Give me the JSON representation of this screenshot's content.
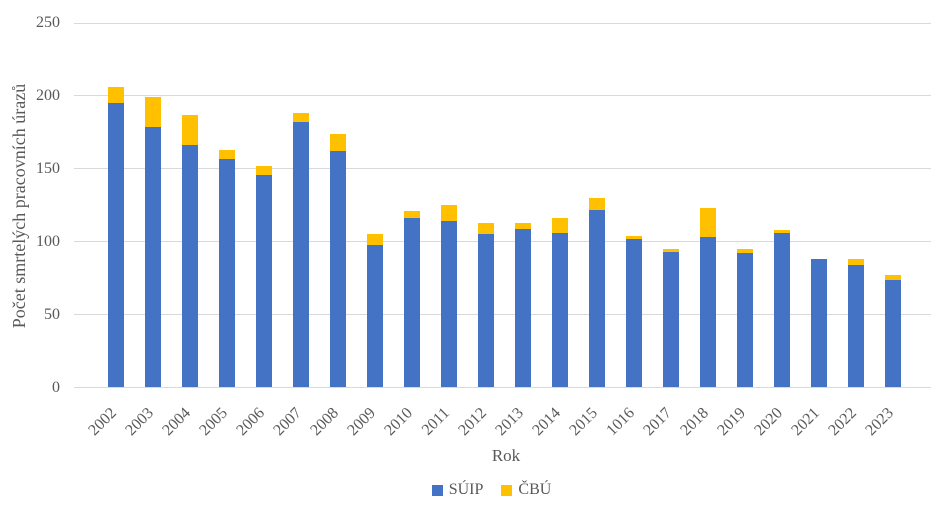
{
  "chart_data": {
    "type": "bar",
    "stacked": true,
    "title": "",
    "xlabel": "Rok",
    "ylabel": "Počet smrtelých pracovních úrazů",
    "categories": [
      "2002",
      "2003",
      "2004",
      "2005",
      "2006",
      "2007",
      "2008",
      "2009",
      "2010",
      "2011",
      "2012",
      "2013",
      "2014",
      "2015",
      "1016",
      "2017",
      "2018",
      "2019",
      "2020",
      "2021",
      "2022",
      "2023"
    ],
    "series": [
      {
        "name": "SÚIP",
        "color": "#4472C4",
        "values": [
          195,
          179,
          166,
          157,
          146,
          182,
          162,
          98,
          116,
          114,
          105,
          109,
          106,
          122,
          102,
          93,
          103,
          92,
          106,
          88,
          84,
          74
        ]
      },
      {
        "name": "ČBÚ",
        "color": "#FFC000",
        "values": [
          11,
          20,
          21,
          6,
          6,
          6,
          12,
          7,
          5,
          11,
          8,
          4,
          10,
          8,
          2,
          2,
          20,
          3,
          2,
          0,
          4,
          3
        ]
      }
    ],
    "totals": [
      206,
      199,
      187,
      163,
      152,
      188,
      174,
      105,
      121,
      125,
      113,
      113,
      116,
      130,
      104,
      95,
      123,
      95,
      108,
      88,
      88,
      77
    ],
    "ylim": [
      0,
      250
    ],
    "yticks": [
      0,
      50,
      100,
      150,
      200,
      250
    ],
    "grid": "horizontal",
    "gridline_color": "#D9D9D9",
    "text_color": "#595959",
    "background_color": "#FFFFFF",
    "legend_position": "bottom-center"
  }
}
